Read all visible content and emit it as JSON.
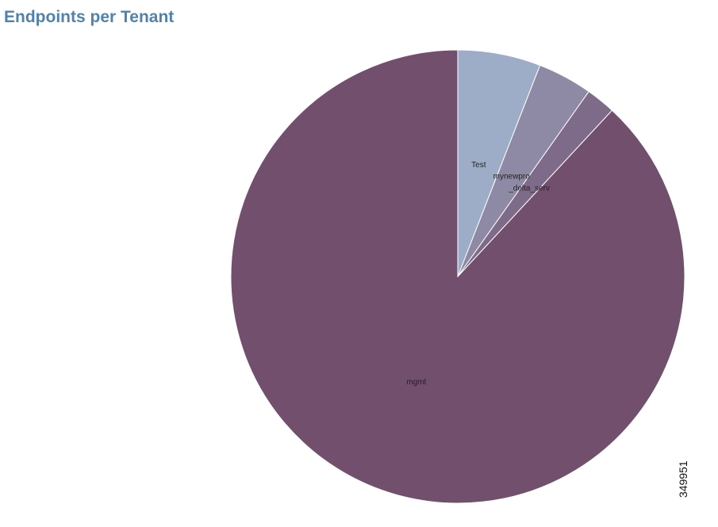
{
  "chart_data": {
    "type": "pie",
    "title": "Endpoints per Tenant",
    "categories": [
      "Test",
      "mynewpro",
      "_delta_serv",
      "mgmt"
    ],
    "values": [
      5.9,
      3.9,
      2.1,
      88.1
    ],
    "colors": [
      "#9dadc8",
      "#8e8aa6",
      "#7e6a89",
      "#714f6d"
    ],
    "figure_id": "349951"
  }
}
